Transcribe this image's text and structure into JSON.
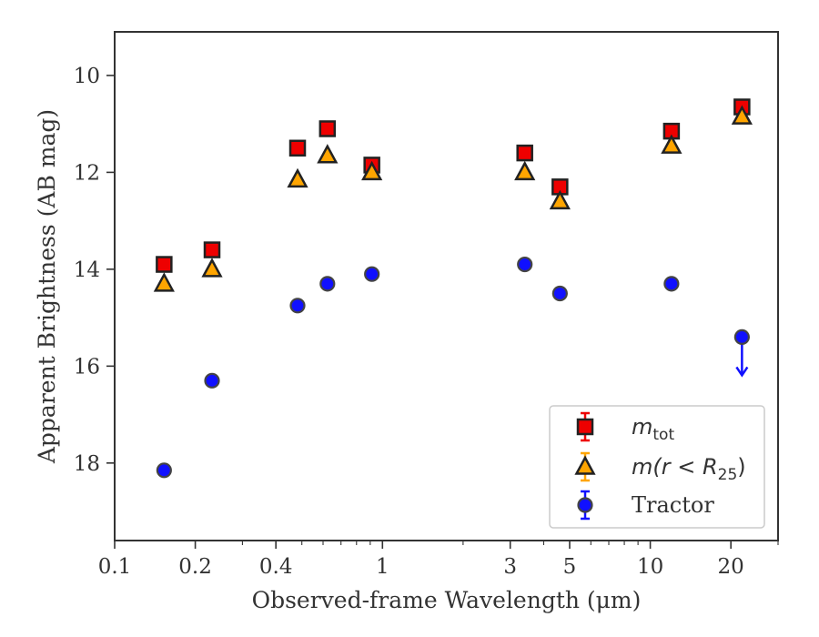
{
  "chart_data": {
    "type": "scatter",
    "xlabel": "Observed-frame Wavelength (μm)",
    "ylabel": "Apparent Brightness (AB mag)",
    "x_scale": "log",
    "xlim": [
      0.1,
      30
    ],
    "ylim": [
      19.6,
      9.1
    ],
    "y_inverted": true,
    "grid": false,
    "legend_position": "lower-right",
    "x_ticks": [
      0.1,
      0.2,
      0.4,
      1,
      3,
      5,
      10,
      20
    ],
    "x_tick_labels": [
      "0.1",
      "0.2",
      "0.4",
      "1",
      "3",
      "5",
      "10",
      "20"
    ],
    "y_ticks": [
      10,
      12,
      14,
      16,
      18
    ],
    "y_tick_labels": [
      "10",
      "12",
      "14",
      "16",
      "18"
    ],
    "series": [
      {
        "name": "m_tot",
        "legend_label": "m",
        "legend_sub": "tot",
        "marker": "square",
        "color": "#ee0000",
        "x": [
          0.153,
          0.231,
          0.482,
          0.623,
          0.913,
          3.4,
          4.6,
          12.0,
          22.0
        ],
        "y": [
          13.9,
          13.6,
          11.5,
          11.1,
          11.85,
          11.6,
          12.3,
          11.15,
          10.65
        ]
      },
      {
        "name": "m(r<R25)",
        "legend_label": "m(r < R",
        "legend_sub": "25",
        "legend_suffix": ")",
        "marker": "triangle",
        "color": "#ffa500",
        "x": [
          0.153,
          0.231,
          0.482,
          0.623,
          0.913,
          3.4,
          4.6,
          12.0,
          22.0
        ],
        "y": [
          14.3,
          14.0,
          12.15,
          11.65,
          12.0,
          12.0,
          12.6,
          11.45,
          10.85
        ]
      },
      {
        "name": "Tractor",
        "legend_label": "Tractor",
        "marker": "circle",
        "color": "#1010ff",
        "x": [
          0.153,
          0.231,
          0.482,
          0.623,
          0.913,
          3.4,
          4.6,
          12.0,
          22.0
        ],
        "y": [
          18.15,
          16.3,
          14.75,
          14.3,
          14.1,
          13.9,
          14.5,
          14.3,
          15.4
        ],
        "upper_limit": [
          false,
          false,
          false,
          false,
          false,
          false,
          false,
          false,
          true
        ]
      }
    ]
  }
}
